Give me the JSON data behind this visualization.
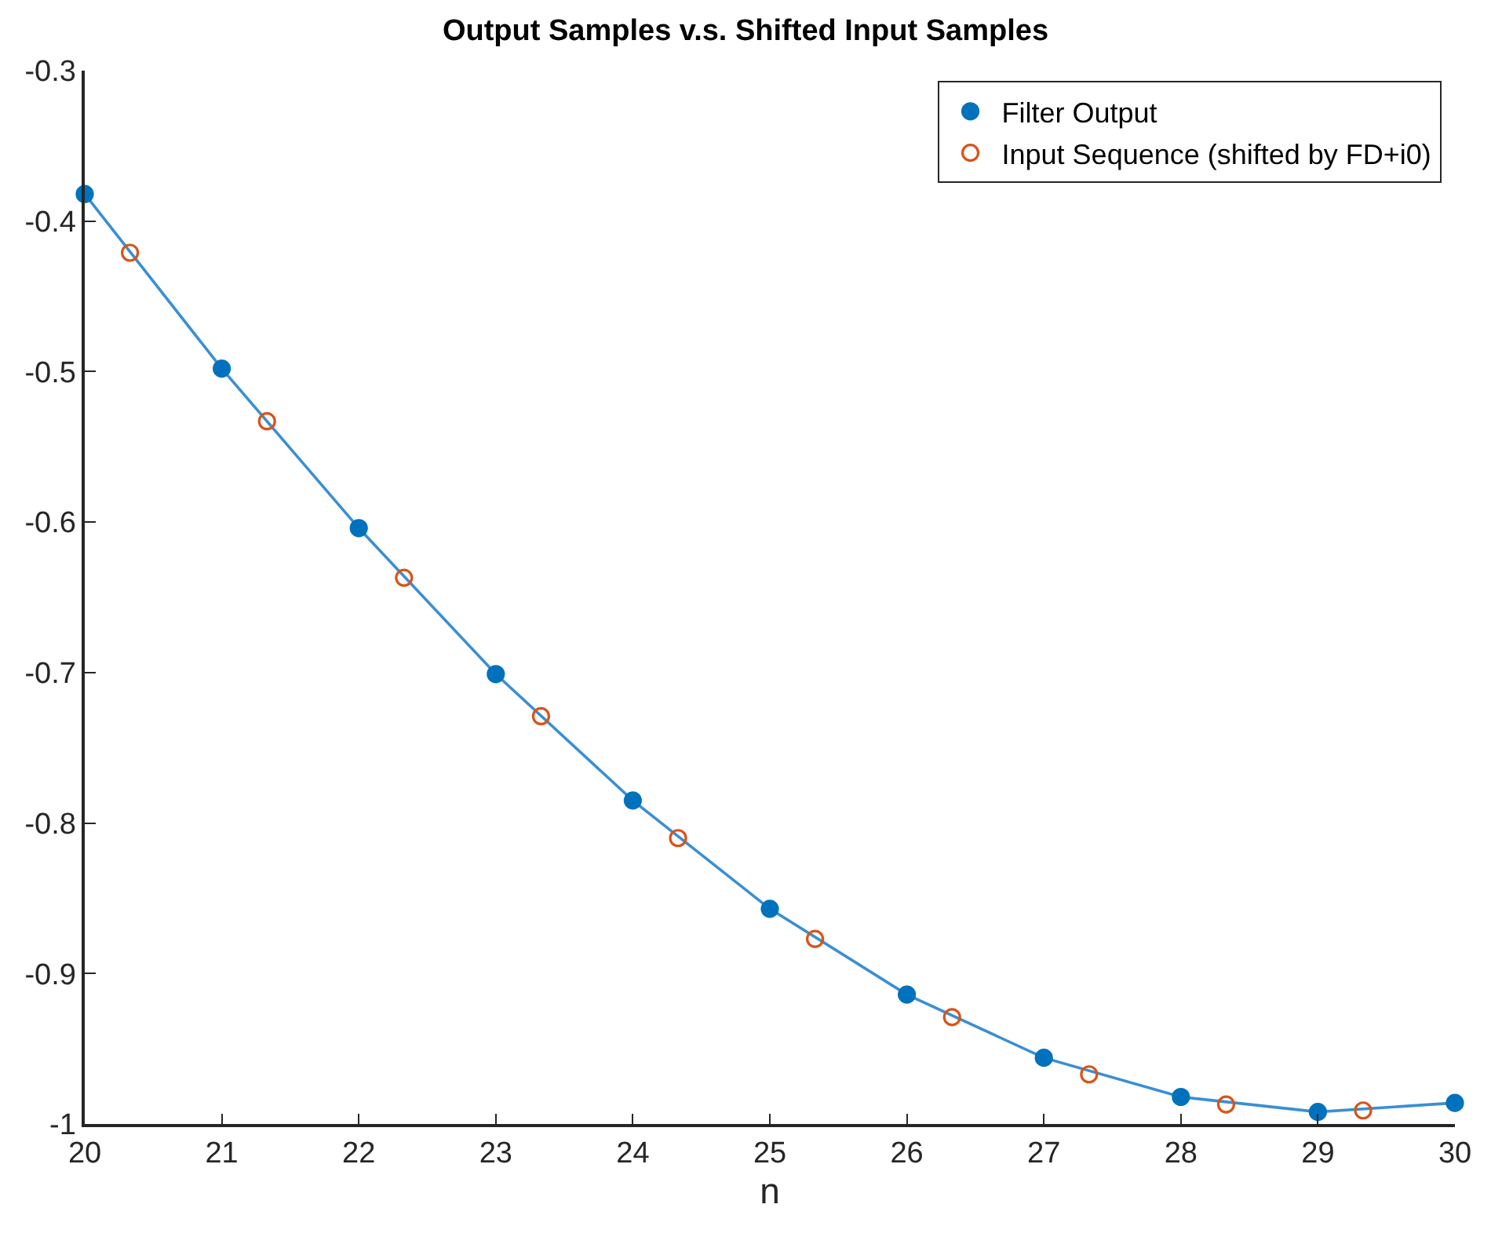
{
  "chart_data": {
    "type": "scatter",
    "title": "Output Samples v.s. Shifted Input Samples",
    "xlabel": "n",
    "series": [
      {
        "type": "line",
        "color": "#3a8fd3",
        "marker": "none",
        "x": [
          20,
          21,
          22,
          23,
          24,
          25,
          26,
          27,
          28,
          29,
          30
        ],
        "values": [
          -0.382,
          -0.498,
          -0.604,
          -0.701,
          -0.785,
          -0.857,
          -0.914,
          -0.956,
          -0.982,
          -0.992,
          -0.986
        ]
      },
      {
        "name": "Filter Output",
        "color": "#0072bd",
        "marker": "circle",
        "x": [
          20,
          21,
          22,
          23,
          24,
          25,
          26,
          27,
          28,
          29,
          30
        ],
        "values": [
          -0.382,
          -0.498,
          -0.604,
          -0.701,
          -0.785,
          -0.857,
          -0.914,
          -0.956,
          -0.982,
          -0.992,
          -0.986
        ]
      },
      {
        "name": "Input Sequence (shifted by FD+i0)",
        "color": "#d95319",
        "marker": "circle-open",
        "x": [
          20.33,
          21.33,
          22.33,
          23.33,
          24.33,
          25.33,
          26.33,
          27.33,
          28.33,
          29.33
        ],
        "values": [
          -0.421,
          -0.533,
          -0.637,
          -0.729,
          -0.81,
          -0.877,
          -0.929,
          -0.967,
          -0.987,
          -0.991
        ]
      }
    ],
    "xlim": [
      20,
      30
    ],
    "xticks": [
      20,
      21,
      22,
      23,
      24,
      25,
      26,
      27,
      28,
      29,
      30
    ],
    "ylim": [
      -1,
      -0.3
    ],
    "yticks": [
      -1,
      -0.9,
      -0.8,
      -0.7,
      -0.6,
      -0.5,
      -0.4,
      -0.3
    ],
    "legend": "top right"
  }
}
